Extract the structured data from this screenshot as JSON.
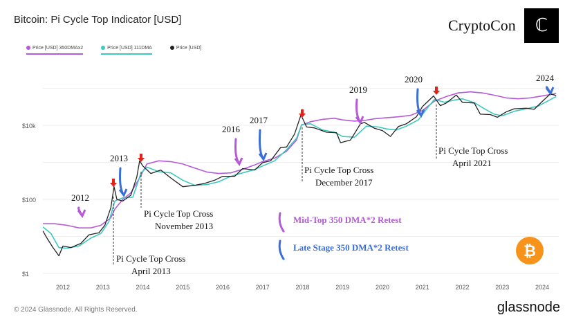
{
  "title": "Bitcoin: Pi Cycle Top Indicator [USD]",
  "brand": "CryptoCon",
  "logo_glyph": "C",
  "footer": "© 2024 Glassnode. All Rights Reserved.",
  "footer_brand": "glassnode",
  "legend": [
    {
      "label": "Price [USD] 350DMAx2",
      "color": "#b65ad8"
    },
    {
      "label": "Price [USD] 111DMA",
      "color": "#3cc9c0"
    },
    {
      "label": "Price [USD]",
      "color": "#222222"
    }
  ],
  "chart_data": {
    "type": "line",
    "title": "Bitcoin: Pi Cycle Top Indicator [USD]",
    "yscale": "log",
    "ylim": [
      1,
      300000
    ],
    "xlim": [
      2011.5,
      2024.4
    ],
    "y_ticks": [
      "$1",
      "$100",
      "$10k"
    ],
    "x_ticks": [
      "2012",
      "2013",
      "2014",
      "2015",
      "2016",
      "2017",
      "2018",
      "2019",
      "2020",
      "2021",
      "2022",
      "2023",
      "2024"
    ],
    "grid": true,
    "legend_position": "top-left",
    "series": [
      {
        "name": "Price [USD]",
        "color": "#222222",
        "points": [
          [
            2011.5,
            14
          ],
          [
            2011.6,
            9
          ],
          [
            2011.75,
            5
          ],
          [
            2011.9,
            3
          ],
          [
            2012.0,
            5.5
          ],
          [
            2012.2,
            5
          ],
          [
            2012.45,
            6.5
          ],
          [
            2012.65,
            11
          ],
          [
            2012.9,
            12.5
          ],
          [
            2013.05,
            20
          ],
          [
            2013.2,
            60
          ],
          [
            2013.28,
            220
          ],
          [
            2013.35,
            100
          ],
          [
            2013.5,
            90
          ],
          [
            2013.7,
            130
          ],
          [
            2013.85,
            400
          ],
          [
            2013.92,
            1100
          ],
          [
            2014.0,
            800
          ],
          [
            2014.2,
            500
          ],
          [
            2014.45,
            620
          ],
          [
            2014.7,
            380
          ],
          [
            2015.0,
            220
          ],
          [
            2015.3,
            240
          ],
          [
            2015.55,
            270
          ],
          [
            2015.8,
            330
          ],
          [
            2016.0,
            420
          ],
          [
            2016.3,
            420
          ],
          [
            2016.5,
            680
          ],
          [
            2016.8,
            620
          ],
          [
            2017.0,
            980
          ],
          [
            2017.2,
            1100
          ],
          [
            2017.45,
            2500
          ],
          [
            2017.6,
            2600
          ],
          [
            2017.8,
            5800
          ],
          [
            2017.96,
            19000
          ],
          [
            2018.1,
            9000
          ],
          [
            2018.3,
            8500
          ],
          [
            2018.6,
            6500
          ],
          [
            2018.85,
            6300
          ],
          [
            2018.95,
            3400
          ],
          [
            2019.2,
            4000
          ],
          [
            2019.45,
            11000
          ],
          [
            2019.55,
            12000
          ],
          [
            2019.8,
            8300
          ],
          [
            2020.0,
            7200
          ],
          [
            2020.2,
            5000
          ],
          [
            2020.4,
            9300
          ],
          [
            2020.6,
            11000
          ],
          [
            2020.85,
            17000
          ],
          [
            2021.0,
            32000
          ],
          [
            2021.28,
            62000
          ],
          [
            2021.45,
            34000
          ],
          [
            2021.6,
            40000
          ],
          [
            2021.85,
            66000
          ],
          [
            2022.0,
            42000
          ],
          [
            2022.3,
            40000
          ],
          [
            2022.45,
            20000
          ],
          [
            2022.7,
            19500
          ],
          [
            2022.88,
            16500
          ],
          [
            2023.1,
            23000
          ],
          [
            2023.3,
            28000
          ],
          [
            2023.6,
            29000
          ],
          [
            2023.8,
            27000
          ],
          [
            2024.0,
            44000
          ],
          [
            2024.2,
            70000
          ],
          [
            2024.35,
            64000
          ]
        ]
      },
      {
        "name": "Price [USD] 111DMA",
        "color": "#3cc9c0",
        "points": [
          [
            2011.5,
            18
          ],
          [
            2011.7,
            12
          ],
          [
            2011.9,
            5
          ],
          [
            2012.1,
            4.8
          ],
          [
            2012.4,
            5.5
          ],
          [
            2012.7,
            9
          ],
          [
            2012.95,
            12
          ],
          [
            2013.15,
            25
          ],
          [
            2013.3,
            90
          ],
          [
            2013.5,
            110
          ],
          [
            2013.75,
            115
          ],
          [
            2013.95,
            500
          ],
          [
            2014.1,
            750
          ],
          [
            2014.4,
            560
          ],
          [
            2014.7,
            520
          ],
          [
            2015.0,
            330
          ],
          [
            2015.3,
            240
          ],
          [
            2015.6,
            250
          ],
          [
            2015.9,
            300
          ],
          [
            2016.2,
            420
          ],
          [
            2016.5,
            520
          ],
          [
            2016.8,
            640
          ],
          [
            2017.0,
            800
          ],
          [
            2017.3,
            1100
          ],
          [
            2017.6,
            2200
          ],
          [
            2017.85,
            4500
          ],
          [
            2017.98,
            10500
          ],
          [
            2018.2,
            11000
          ],
          [
            2018.5,
            7500
          ],
          [
            2018.8,
            6500
          ],
          [
            2019.0,
            5000
          ],
          [
            2019.3,
            4800
          ],
          [
            2019.6,
            9500
          ],
          [
            2019.9,
            9000
          ],
          [
            2020.1,
            8000
          ],
          [
            2020.35,
            7500
          ],
          [
            2020.6,
            9500
          ],
          [
            2020.9,
            14000
          ],
          [
            2021.1,
            27000
          ],
          [
            2021.3,
            50000
          ],
          [
            2021.55,
            42000
          ],
          [
            2021.8,
            48000
          ],
          [
            2022.0,
            52000
          ],
          [
            2022.3,
            41000
          ],
          [
            2022.55,
            28000
          ],
          [
            2022.8,
            20000
          ],
          [
            2023.0,
            18000
          ],
          [
            2023.3,
            24000
          ],
          [
            2023.6,
            28000
          ],
          [
            2023.9,
            33000
          ],
          [
            2024.1,
            43000
          ],
          [
            2024.35,
            60000
          ]
        ]
      },
      {
        "name": "Price [USD] 350DMAx2",
        "color": "#b65ad8",
        "points": [
          [
            2011.5,
            22
          ],
          [
            2011.8,
            22
          ],
          [
            2012.1,
            20
          ],
          [
            2012.4,
            17
          ],
          [
            2012.7,
            17
          ],
          [
            2012.95,
            20
          ],
          [
            2013.2,
            32
          ],
          [
            2013.3,
            55
          ],
          [
            2013.5,
            100
          ],
          [
            2013.7,
            150
          ],
          [
            2013.93,
            400
          ],
          [
            2014.1,
            900
          ],
          [
            2014.4,
            1100
          ],
          [
            2014.7,
            1050
          ],
          [
            2015.0,
            900
          ],
          [
            2015.3,
            700
          ],
          [
            2015.6,
            550
          ],
          [
            2015.9,
            500
          ],
          [
            2016.2,
            520
          ],
          [
            2016.5,
            650
          ],
          [
            2016.8,
            850
          ],
          [
            2017.0,
            1050
          ],
          [
            2017.3,
            1300
          ],
          [
            2017.6,
            2000
          ],
          [
            2017.85,
            4000
          ],
          [
            2017.97,
            10000
          ],
          [
            2018.2,
            12500
          ],
          [
            2018.5,
            14500
          ],
          [
            2018.8,
            15500
          ],
          [
            2019.0,
            14000
          ],
          [
            2019.3,
            13000
          ],
          [
            2019.55,
            13500
          ],
          [
            2019.8,
            15000
          ],
          [
            2020.1,
            16000
          ],
          [
            2020.4,
            17000
          ],
          [
            2020.7,
            18500
          ],
          [
            2021.0,
            25000
          ],
          [
            2021.3,
            45000
          ],
          [
            2021.6,
            60000
          ],
          [
            2021.9,
            75000
          ],
          [
            2022.2,
            80000
          ],
          [
            2022.5,
            75000
          ],
          [
            2022.8,
            65000
          ],
          [
            2023.1,
            55000
          ],
          [
            2023.4,
            52000
          ],
          [
            2023.7,
            55000
          ],
          [
            2024.0,
            62000
          ],
          [
            2024.35,
            72000
          ]
        ]
      }
    ],
    "annotations": [
      {
        "text": "2012"
      },
      {
        "text": "2013"
      },
      {
        "text": "2016"
      },
      {
        "text": "2017"
      },
      {
        "text": "2019"
      },
      {
        "text": "2020"
      },
      {
        "text": "2024"
      },
      {
        "text": "Pi Cycle Top Cross",
        "sub": "April 2013"
      },
      {
        "text": "Pi Cycle Top Cross",
        "sub": "November 2013"
      },
      {
        "text": "Pi Cycle Top Cross",
        "sub": "December 2017"
      },
      {
        "text": "Pi Cycle Top Cross",
        "sub": "April 2021"
      }
    ],
    "key": [
      {
        "text": "Mid-Top 350 DMA*2 Retest",
        "color": "#b65ad8"
      },
      {
        "text": "Late Stage 350 DMA*2 Retest",
        "color": "#3a6fd8"
      }
    ]
  }
}
